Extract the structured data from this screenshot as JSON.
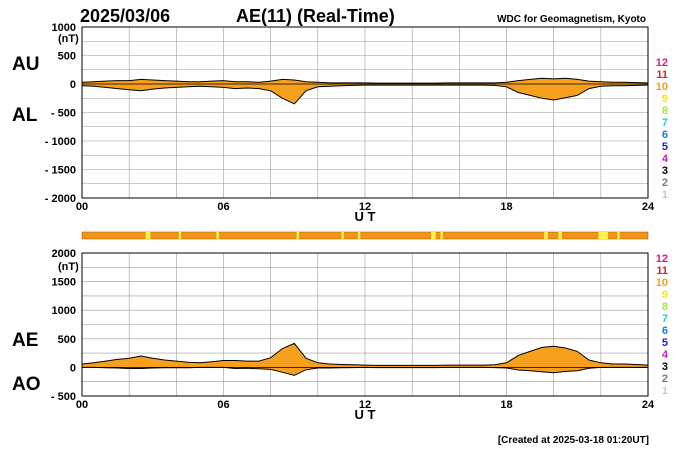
{
  "header": {
    "date": "2025/03/06",
    "title": "AE(11) (Real-Time)",
    "source": "WDC for Geomagnetism, Kyoto"
  },
  "footer": {
    "created": "[Created at 2025-03-18 01:20UT]"
  },
  "colors": {
    "fill": "#F7A01E",
    "trace": "#000000",
    "grid": "#9A9A9A",
    "level_bar": "#F39419",
    "level_highlight": "#FFF24A"
  },
  "station_scale": {
    "labels": [
      "12",
      "11",
      "10",
      "9",
      "8",
      "7",
      "6",
      "5",
      "4",
      "3",
      "2",
      "1"
    ],
    "colors": [
      "#E8157A",
      "#E81E1E",
      "#F5A01E",
      "#F5E61E",
      "#A4E83C",
      "#20D0C0",
      "#1E78E8",
      "#1E1EC8",
      "#C81EC8",
      "#000000",
      "#7A7A7A",
      "#C8C8C8"
    ]
  },
  "chart_data": [
    {
      "type": "area",
      "panel": "AU/AL",
      "series_labels": [
        "AU",
        "AL"
      ],
      "ylabel": "(nT)",
      "xlabel": "U T",
      "x_ticks": [
        "00",
        "06",
        "12",
        "18",
        "24"
      ],
      "y_ticks": [
        "1000",
        "500",
        "0",
        "- 500",
        "- 1000",
        "- 1500",
        "- 2000"
      ],
      "xlim": [
        0,
        24
      ],
      "ylim": [
        -2000,
        1000
      ],
      "grid": true,
      "x": [
        0,
        0.5,
        1,
        1.5,
        2,
        2.5,
        3,
        3.5,
        4,
        4.5,
        5,
        5.5,
        6,
        6.5,
        7,
        7.5,
        8,
        8.5,
        9,
        9.5,
        10,
        10.5,
        11,
        11.5,
        12,
        12.5,
        13,
        13.5,
        14,
        14.5,
        15,
        15.5,
        16,
        16.5,
        17,
        17.5,
        18,
        18.5,
        19,
        19.5,
        20,
        20.5,
        21,
        21.5,
        22,
        22.5,
        23,
        23.5,
        24
      ],
      "series": [
        {
          "name": "AU",
          "values": [
            30,
            40,
            50,
            60,
            60,
            80,
            70,
            60,
            50,
            40,
            40,
            50,
            60,
            40,
            40,
            30,
            50,
            80,
            70,
            40,
            30,
            20,
            20,
            20,
            20,
            15,
            15,
            15,
            15,
            15,
            15,
            20,
            20,
            20,
            20,
            20,
            30,
            60,
            80,
            100,
            90,
            100,
            80,
            50,
            40,
            30,
            30,
            25,
            20
          ]
        },
        {
          "name": "AL",
          "values": [
            -30,
            -40,
            -60,
            -80,
            -100,
            -120,
            -90,
            -70,
            -60,
            -50,
            -40,
            -50,
            -60,
            -80,
            -70,
            -80,
            -120,
            -250,
            -350,
            -120,
            -50,
            -40,
            -30,
            -25,
            -20,
            -20,
            -20,
            -20,
            -20,
            -20,
            -20,
            -20,
            -20,
            -20,
            -20,
            -25,
            -50,
            -150,
            -200,
            -250,
            -280,
            -240,
            -200,
            -80,
            -40,
            -30,
            -30,
            -25,
            -20
          ]
        }
      ]
    },
    {
      "type": "area",
      "panel": "AE/AO",
      "series_labels": [
        "AE",
        "AO"
      ],
      "ylabel": "(nT)",
      "xlabel": "U T",
      "x_ticks": [
        "00",
        "06",
        "12",
        "18",
        "24"
      ],
      "y_ticks": [
        "2000",
        "1500",
        "1000",
        "500",
        "0",
        "- 500"
      ],
      "xlim": [
        0,
        24
      ],
      "ylim": [
        -500,
        2000
      ],
      "grid": true,
      "x": [
        0,
        0.5,
        1,
        1.5,
        2,
        2.5,
        3,
        3.5,
        4,
        4.5,
        5,
        5.5,
        6,
        6.5,
        7,
        7.5,
        8,
        8.5,
        9,
        9.5,
        10,
        10.5,
        11,
        11.5,
        12,
        12.5,
        13,
        13.5,
        14,
        14.5,
        15,
        15.5,
        16,
        16.5,
        17,
        17.5,
        18,
        18.5,
        19,
        19.5,
        20,
        20.5,
        21,
        21.5,
        22,
        22.5,
        23,
        23.5,
        24
      ],
      "series": [
        {
          "name": "AE",
          "values": [
            60,
            80,
            110,
            140,
            160,
            200,
            160,
            130,
            110,
            90,
            80,
            100,
            120,
            120,
            110,
            110,
            170,
            330,
            420,
            160,
            80,
            60,
            50,
            45,
            40,
            35,
            35,
            35,
            35,
            35,
            35,
            40,
            40,
            40,
            40,
            45,
            80,
            210,
            280,
            350,
            370,
            340,
            280,
            130,
            80,
            60,
            60,
            50,
            40
          ]
        },
        {
          "name": "AO",
          "values": [
            0,
            0,
            -5,
            -10,
            -20,
            -20,
            -10,
            -5,
            -5,
            -5,
            0,
            0,
            0,
            -20,
            -15,
            -25,
            -35,
            -85,
            -140,
            -40,
            -10,
            -10,
            -5,
            -3,
            0,
            -3,
            -3,
            -3,
            -3,
            -3,
            -3,
            0,
            0,
            0,
            0,
            -3,
            -10,
            -45,
            -60,
            -75,
            -95,
            -70,
            -60,
            -15,
            0,
            0,
            0,
            0,
            0
          ]
        }
      ]
    }
  ],
  "level_bar": {
    "base_level": "10",
    "highlight_level": "9",
    "highlights": [
      [
        2.7,
        2.9
      ],
      [
        4.1,
        4.2
      ],
      [
        5.7,
        5.8
      ],
      [
        9.1,
        9.2
      ],
      [
        11.0,
        11.1
      ],
      [
        11.7,
        11.8
      ],
      [
        14.8,
        15.0
      ],
      [
        15.2,
        15.3
      ],
      [
        19.6,
        19.75
      ],
      [
        20.2,
        20.35
      ],
      [
        21.9,
        22.3
      ],
      [
        22.7,
        22.8
      ]
    ]
  }
}
